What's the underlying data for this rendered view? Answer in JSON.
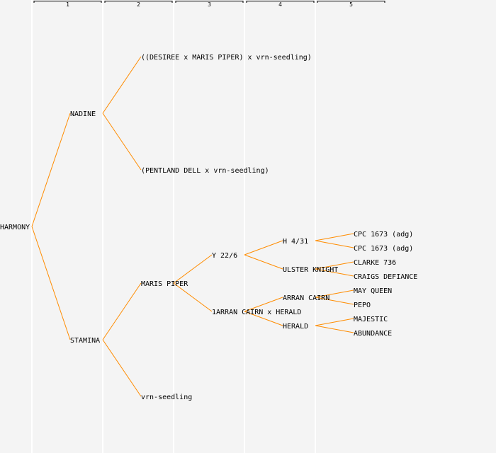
{
  "header": {
    "generations": [
      "1",
      "2",
      "3",
      "4",
      "5"
    ]
  },
  "colors": {
    "line": "#ff8c00",
    "background": "#f4f4f4",
    "divider": "#ffffff"
  },
  "tree": {
    "name": "HARMONY",
    "parents": [
      {
        "name": "NADINE",
        "parents": [
          {
            "name": "((DESIREE x MARIS PIPER) x vrn-seedling)"
          },
          {
            "name": "(PENTLAND DELL x vrn-seedling)"
          }
        ]
      },
      {
        "name": "STAMINA",
        "parents": [
          {
            "name": "MARIS PIPER",
            "parents": [
              {
                "name": "Y 22/6",
                "parents": [
                  {
                    "name": "H 4/31",
                    "parents": [
                      {
                        "name": "CPC 1673 (adg)"
                      },
                      {
                        "name": "CPC 1673 (adg)"
                      }
                    ]
                  },
                  {
                    "name": "ULSTER KNIGHT",
                    "parents": [
                      {
                        "name": "CLARKE 736"
                      },
                      {
                        "name": "CRAIGS DEFIANCE"
                      }
                    ]
                  }
                ]
              },
              {
                "name": "1ARRAN CAIRN x HERALD",
                "parents": [
                  {
                    "name": "ARRAN CAIRN",
                    "parents": [
                      {
                        "name": "MAY QUEEN"
                      },
                      {
                        "name": "PEPO"
                      }
                    ]
                  },
                  {
                    "name": "HERALD",
                    "parents": [
                      {
                        "name": "MAJESTIC"
                      },
                      {
                        "name": "ABUNDANCE"
                      }
                    ]
                  }
                ]
              }
            ]
          },
          {
            "name": "vrn-seedling"
          }
        ]
      }
    ]
  }
}
